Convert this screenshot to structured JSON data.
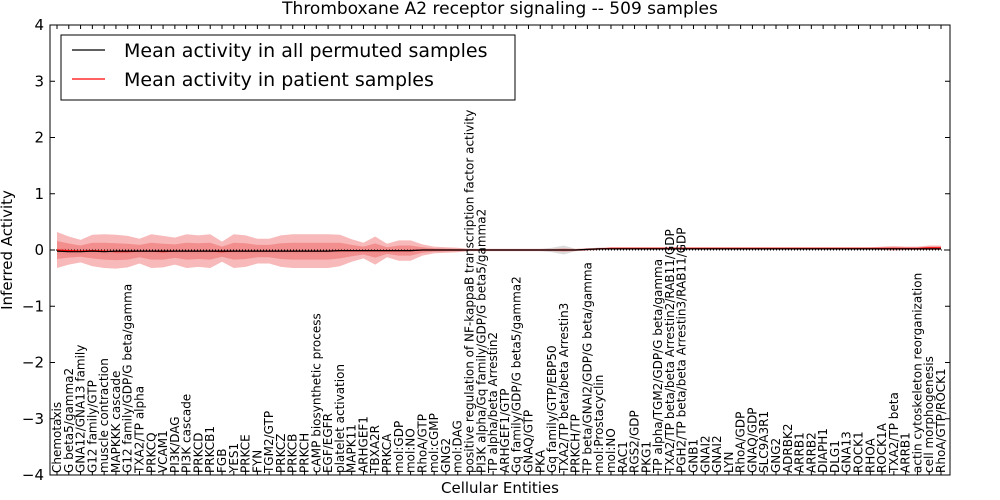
{
  "chart_data": {
    "type": "line",
    "title": "Thromboxane A2 receptor signaling -- 509 samples",
    "xlabel": "Cellular Entities",
    "ylabel": "Inferred Activity",
    "ylim": [
      -4,
      4
    ],
    "yticks": [
      -4,
      -3,
      -2,
      -1,
      0,
      1,
      2,
      3,
      4
    ],
    "ytick_labels": [
      "−4",
      "−3",
      "−2",
      "−1",
      "0",
      "1",
      "2",
      "3",
      "4"
    ],
    "legend": {
      "position": "top-left",
      "entries": [
        {
          "label": "Mean activity in all permuted samples",
          "color": "#000000"
        },
        {
          "label": "Mean activity in patient samples",
          "color": "#ff0000"
        }
      ]
    },
    "colors": {
      "patient": "#ff0000",
      "patient_band": "#f08080",
      "permuted": "#000000",
      "permuted_band": "#c0c0c0"
    },
    "categories": [
      "Chemotaxis",
      "G beta5/gamma2",
      "GNA12/GNA13 family",
      "G12 family/GTP",
      "muscle contraction",
      "MAPKKK cascade",
      "G12 family/GDP/G beta/gamma",
      "TXA2/TP alpha",
      "PRKCQ",
      "VCAM1",
      "PI3K/DAG",
      "PI3K cascade",
      "PRKCD",
      "PRKCB1",
      "FGB",
      "YES1",
      "PRKCE",
      "FYN",
      "TGM2/GTP",
      "PRKCZ",
      "PRKCB",
      "PRKCH",
      "cAMP biosynthetic process",
      "EGF/EGFR",
      "platelet activation",
      "MAPK11",
      "ARHGEF1",
      "TBXA2R",
      "PRKCA",
      "mol:GDP",
      "mol:NO",
      "RhoA/GTP",
      "mol:cGMP",
      "GNG2",
      "mol:DAG",
      "positive regulation of NF-kappaB transcription factor activity",
      "PI3K alpha/Gq family/GDP/G beta5/gamma2",
      "TP alpha/beta Arrestin2",
      "ARHGEF1/GTP",
      "Gq family/GDP/G beta5/gamma2",
      "GNAQ/GTP",
      "PKA",
      "Gq family/GTP/EBP50",
      "TXA2/TP beta/beta Arrestin3",
      "PRKCH/TP",
      "TP beta/GNAI2/GDP/G beta/gamma",
      "mol:Prostacyclin",
      "mol:NO",
      "RAC1",
      "RGS2/GDP",
      "PKG1",
      "TP alpha/TGM2/GDP/G beta/gamma",
      "TXA2/TP beta/beta Arrestin2/RAB11/GDP",
      "PGH2/TP beta/beta Arrestin3/RAB11/GDP",
      "GNB1",
      "GNAI2",
      "GNAI2",
      "LYN",
      "RhoA/GDP",
      "GNAQ/GDP",
      "SLC9A3R1",
      "GNG2",
      "ADRBK2",
      "ARRB1",
      "ARRB2",
      "DIAPH1",
      "DLG1",
      "GNA13",
      "ROCK1",
      "RHOA",
      "ROCK1A",
      "TXA2/TP beta",
      "ARRB1",
      "actin cytoskeleton reorganization",
      "cell morphogenesis",
      "RhoA/GTP/ROCK1"
    ],
    "patient_mean": [
      0.0,
      -0.01,
      -0.02,
      -0.01,
      -0.02,
      -0.03,
      -0.03,
      -0.02,
      -0.02,
      -0.03,
      -0.02,
      -0.02,
      -0.02,
      -0.02,
      -0.03,
      -0.02,
      -0.02,
      -0.02,
      -0.02,
      -0.02,
      -0.02,
      -0.02,
      -0.02,
      -0.02,
      -0.01,
      -0.01,
      -0.01,
      -0.01,
      -0.01,
      -0.01,
      -0.01,
      0.0,
      0.0,
      0.0,
      0.0,
      0.0,
      0.0,
      0.0,
      0.0,
      0.0,
      0.0,
      0.0,
      0.0,
      0.0,
      0.0,
      0.01,
      0.02,
      0.03,
      0.03,
      0.03,
      0.03,
      0.03,
      0.03,
      0.03,
      0.03,
      0.03,
      0.03,
      0.03,
      0.03,
      0.03,
      0.03,
      0.03,
      0.03,
      0.03,
      0.03,
      0.03,
      0.03,
      0.03,
      0.03,
      0.03,
      0.03,
      0.03,
      0.03,
      0.03,
      0.04,
      0.04
    ],
    "patient_spread": [
      0.32,
      0.25,
      0.2,
      0.28,
      0.3,
      0.3,
      0.28,
      0.22,
      0.3,
      0.28,
      0.24,
      0.3,
      0.28,
      0.3,
      0.18,
      0.3,
      0.28,
      0.22,
      0.22,
      0.28,
      0.3,
      0.3,
      0.3,
      0.3,
      0.28,
      0.2,
      0.14,
      0.25,
      0.12,
      0.18,
      0.18,
      0.1,
      0.06,
      0.05,
      0.04,
      0.02,
      0.02,
      0.02,
      0.02,
      0.02,
      0.02,
      0.02,
      0.02,
      0.03,
      0.02,
      0.02,
      0.02,
      0.02,
      0.02,
      0.02,
      0.02,
      0.02,
      0.02,
      0.02,
      0.02,
      0.02,
      0.02,
      0.02,
      0.02,
      0.02,
      0.02,
      0.02,
      0.02,
      0.02,
      0.02,
      0.02,
      0.02,
      0.02,
      0.02,
      0.02,
      0.03,
      0.04,
      0.03,
      0.03,
      0.04,
      0.04
    ],
    "permuted_mean": [
      -0.02,
      -0.03,
      -0.03,
      -0.02,
      -0.03,
      -0.02,
      -0.02,
      -0.02,
      -0.02,
      -0.02,
      -0.02,
      -0.02,
      -0.02,
      -0.02,
      -0.02,
      -0.02,
      -0.02,
      -0.02,
      -0.02,
      -0.02,
      -0.02,
      -0.02,
      -0.02,
      -0.02,
      -0.01,
      -0.01,
      -0.01,
      -0.01,
      -0.01,
      -0.01,
      -0.01,
      0.0,
      0.0,
      0.0,
      0.0,
      0.0,
      0.0,
      0.0,
      0.0,
      0.0,
      0.0,
      0.0,
      0.0,
      0.0,
      0.0,
      0.01,
      0.02,
      0.02,
      0.02,
      0.02,
      0.02,
      0.02,
      0.02,
      0.02,
      0.02,
      0.02,
      0.02,
      0.02,
      0.02,
      0.02,
      0.02,
      0.02,
      0.02,
      0.02,
      0.02,
      0.02,
      0.02,
      0.02,
      0.02,
      0.02,
      0.02,
      0.02,
      0.02,
      0.02,
      0.02,
      0.02
    ],
    "permuted_spread": [
      0.06,
      0.06,
      0.05,
      0.05,
      0.05,
      0.05,
      0.05,
      0.04,
      0.04,
      0.04,
      0.04,
      0.04,
      0.04,
      0.04,
      0.04,
      0.04,
      0.04,
      0.04,
      0.04,
      0.04,
      0.04,
      0.04,
      0.04,
      0.04,
      0.04,
      0.03,
      0.03,
      0.03,
      0.03,
      0.03,
      0.03,
      0.03,
      0.02,
      0.02,
      0.02,
      0.02,
      0.02,
      0.02,
      0.02,
      0.02,
      0.02,
      0.02,
      0.04,
      0.08,
      0.02,
      0.02,
      0.02,
      0.02,
      0.02,
      0.02,
      0.02,
      0.02,
      0.02,
      0.02,
      0.02,
      0.02,
      0.02,
      0.02,
      0.02,
      0.02,
      0.02,
      0.02,
      0.02,
      0.02,
      0.02,
      0.02,
      0.02,
      0.02,
      0.02,
      0.02,
      0.02,
      0.02,
      0.02,
      0.02,
      0.02,
      0.02
    ]
  }
}
